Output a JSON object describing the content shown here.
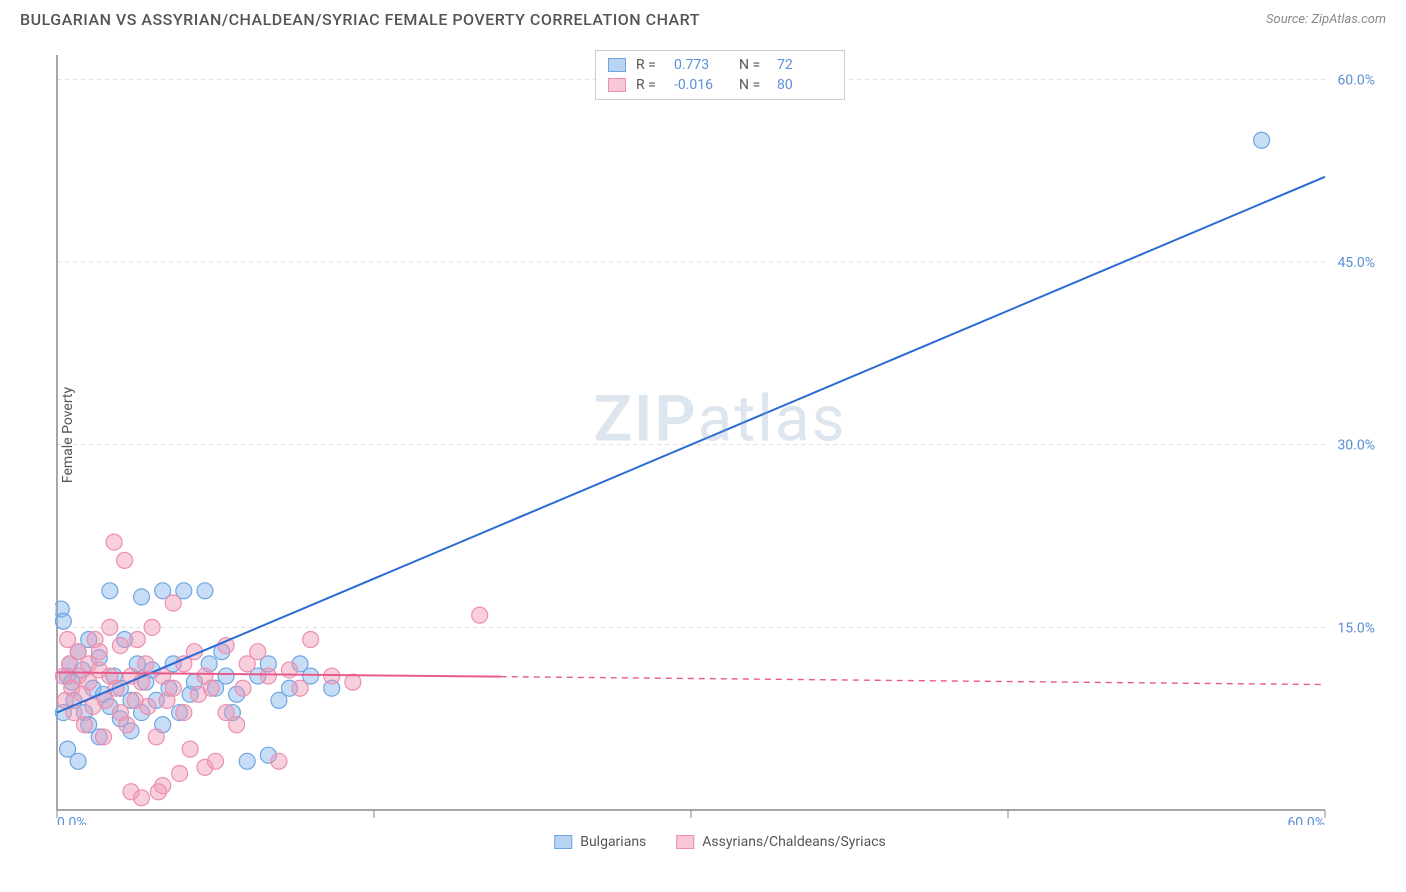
{
  "header": {
    "title": "BULGARIAN VS ASSYRIAN/CHALDEAN/SYRIAC FEMALE POVERTY CORRELATION CHART",
    "source_label": "Source:",
    "source_value": "ZipAtlas.com"
  },
  "chart": {
    "type": "scatter",
    "ylabel": "Female Poverty",
    "xlim": [
      0,
      60
    ],
    "ylim": [
      0,
      62
    ],
    "x_ticks": [
      0,
      15,
      30,
      45,
      60
    ],
    "x_tick_labels": [
      "0.0%",
      "",
      "",
      "",
      "60.0%"
    ],
    "y_ticks": [
      15,
      30,
      45,
      60
    ],
    "y_tick_labels": [
      "15.0%",
      "30.0%",
      "45.0%",
      "60.0%"
    ],
    "background_color": "#ffffff",
    "grid_color": "#dddddd",
    "axis_color": "#888888",
    "tick_label_color": "#5b8fd6",
    "watermark": "ZIPatlas",
    "legend_top": [
      {
        "swatch_fill": "#b9d4f1",
        "swatch_stroke": "#6ea6e4",
        "r_label": "R =",
        "r_value": "0.773",
        "n_label": "N =",
        "n_value": "72"
      },
      {
        "swatch_fill": "#f7c7d6",
        "swatch_stroke": "#ec8fb0",
        "r_label": "R =",
        "r_value": "-0.016",
        "n_label": "N =",
        "n_value": "80"
      }
    ],
    "legend_bottom": [
      {
        "swatch_fill": "#b9d4f1",
        "swatch_stroke": "#6ea6e4",
        "label": "Bulgarians"
      },
      {
        "swatch_fill": "#f7c7d6",
        "swatch_stroke": "#ec8fb0",
        "label": "Assyrians/Chaldeans/Syriacs"
      }
    ],
    "series": [
      {
        "name": "Bulgarians",
        "point_fill": "rgba(130, 180, 235, 0.45)",
        "point_stroke": "#6ea6e4",
        "point_radius": 8,
        "trend": {
          "x1": 0,
          "y1": 8,
          "x2": 60,
          "y2": 52,
          "color": "#2b6cd4",
          "width": 2,
          "dash_from_x": 60
        },
        "points": [
          [
            0.2,
            16.5
          ],
          [
            0.3,
            8
          ],
          [
            0.3,
            15.5
          ],
          [
            0.5,
            11
          ],
          [
            0.5,
            5
          ],
          [
            0.6,
            12
          ],
          [
            0.7,
            10.5
          ],
          [
            0.8,
            9
          ],
          [
            1,
            13
          ],
          [
            1,
            4
          ],
          [
            1.2,
            11.5
          ],
          [
            1.3,
            8
          ],
          [
            1.5,
            7
          ],
          [
            1.5,
            14
          ],
          [
            1.7,
            10
          ],
          [
            2,
            12.5
          ],
          [
            2,
            6
          ],
          [
            2.2,
            9.5
          ],
          [
            2.5,
            8.5
          ],
          [
            2.5,
            18
          ],
          [
            2.7,
            11
          ],
          [
            3,
            10
          ],
          [
            3,
            7.5
          ],
          [
            3.2,
            14
          ],
          [
            3.5,
            9
          ],
          [
            3.5,
            6.5
          ],
          [
            3.8,
            12
          ],
          [
            4,
            17.5
          ],
          [
            4,
            8
          ],
          [
            4.2,
            10.5
          ],
          [
            4.5,
            11.5
          ],
          [
            4.7,
            9
          ],
          [
            5,
            18
          ],
          [
            5,
            7
          ],
          [
            5.3,
            10
          ],
          [
            5.5,
            12
          ],
          [
            5.8,
            8
          ],
          [
            6,
            18
          ],
          [
            6.3,
            9.5
          ],
          [
            6.5,
            10.5
          ],
          [
            7,
            18
          ],
          [
            7.2,
            12
          ],
          [
            7.5,
            10
          ],
          [
            7.8,
            13
          ],
          [
            8,
            11
          ],
          [
            8.3,
            8
          ],
          [
            8.5,
            9.5
          ],
          [
            9,
            4
          ],
          [
            9.5,
            11
          ],
          [
            10,
            4.5
          ],
          [
            10,
            12
          ],
          [
            10.5,
            9
          ],
          [
            11,
            10
          ],
          [
            11.5,
            12
          ],
          [
            12,
            11
          ],
          [
            13,
            10
          ],
          [
            57,
            55
          ]
        ]
      },
      {
        "name": "Assyrians/Chaldeans/Syriacs",
        "point_fill": "rgba(240, 150, 180, 0.45)",
        "point_stroke": "#ec8fb0",
        "point_radius": 8,
        "trend": {
          "x1": 0,
          "y1": 11.3,
          "x2": 60,
          "y2": 10.3,
          "color": "#e85a8c",
          "width": 2,
          "dash_from_x": 21
        },
        "points": [
          [
            0.3,
            11
          ],
          [
            0.4,
            9
          ],
          [
            0.5,
            14
          ],
          [
            0.6,
            12
          ],
          [
            0.7,
            10
          ],
          [
            0.8,
            8
          ],
          [
            1,
            13
          ],
          [
            1,
            11
          ],
          [
            1.2,
            9.5
          ],
          [
            1.3,
            7
          ],
          [
            1.5,
            12
          ],
          [
            1.5,
            10.5
          ],
          [
            1.7,
            8.5
          ],
          [
            1.8,
            14
          ],
          [
            2,
            11.5
          ],
          [
            2,
            13
          ],
          [
            2.2,
            6
          ],
          [
            2.3,
            9
          ],
          [
            2.5,
            15
          ],
          [
            2.5,
            11
          ],
          [
            2.7,
            22
          ],
          [
            2.8,
            10
          ],
          [
            3,
            8
          ],
          [
            3,
            13.5
          ],
          [
            3.2,
            20.5
          ],
          [
            3.3,
            7
          ],
          [
            3.5,
            11
          ],
          [
            3.5,
            1.5
          ],
          [
            3.7,
            9
          ],
          [
            3.8,
            14
          ],
          [
            4,
            10.5
          ],
          [
            4,
            1
          ],
          [
            4.2,
            12
          ],
          [
            4.3,
            8.5
          ],
          [
            4.5,
            15
          ],
          [
            4.7,
            6
          ],
          [
            4.8,
            1.5
          ],
          [
            5,
            11
          ],
          [
            5,
            2
          ],
          [
            5.2,
            9
          ],
          [
            5.5,
            17
          ],
          [
            5.5,
            10
          ],
          [
            5.8,
            3
          ],
          [
            6,
            12
          ],
          [
            6,
            8
          ],
          [
            6.3,
            5
          ],
          [
            6.5,
            13
          ],
          [
            6.7,
            9.5
          ],
          [
            7,
            3.5
          ],
          [
            7,
            11
          ],
          [
            7.3,
            10
          ],
          [
            7.5,
            4
          ],
          [
            8,
            13.5
          ],
          [
            8,
            8
          ],
          [
            8.5,
            7
          ],
          [
            8.8,
            10
          ],
          [
            9,
            12
          ],
          [
            9.5,
            13
          ],
          [
            10,
            11
          ],
          [
            10.5,
            4
          ],
          [
            11,
            11.5
          ],
          [
            11.5,
            10
          ],
          [
            12,
            14
          ],
          [
            13,
            11
          ],
          [
            14,
            10.5
          ],
          [
            20,
            16
          ]
        ]
      }
    ]
  }
}
